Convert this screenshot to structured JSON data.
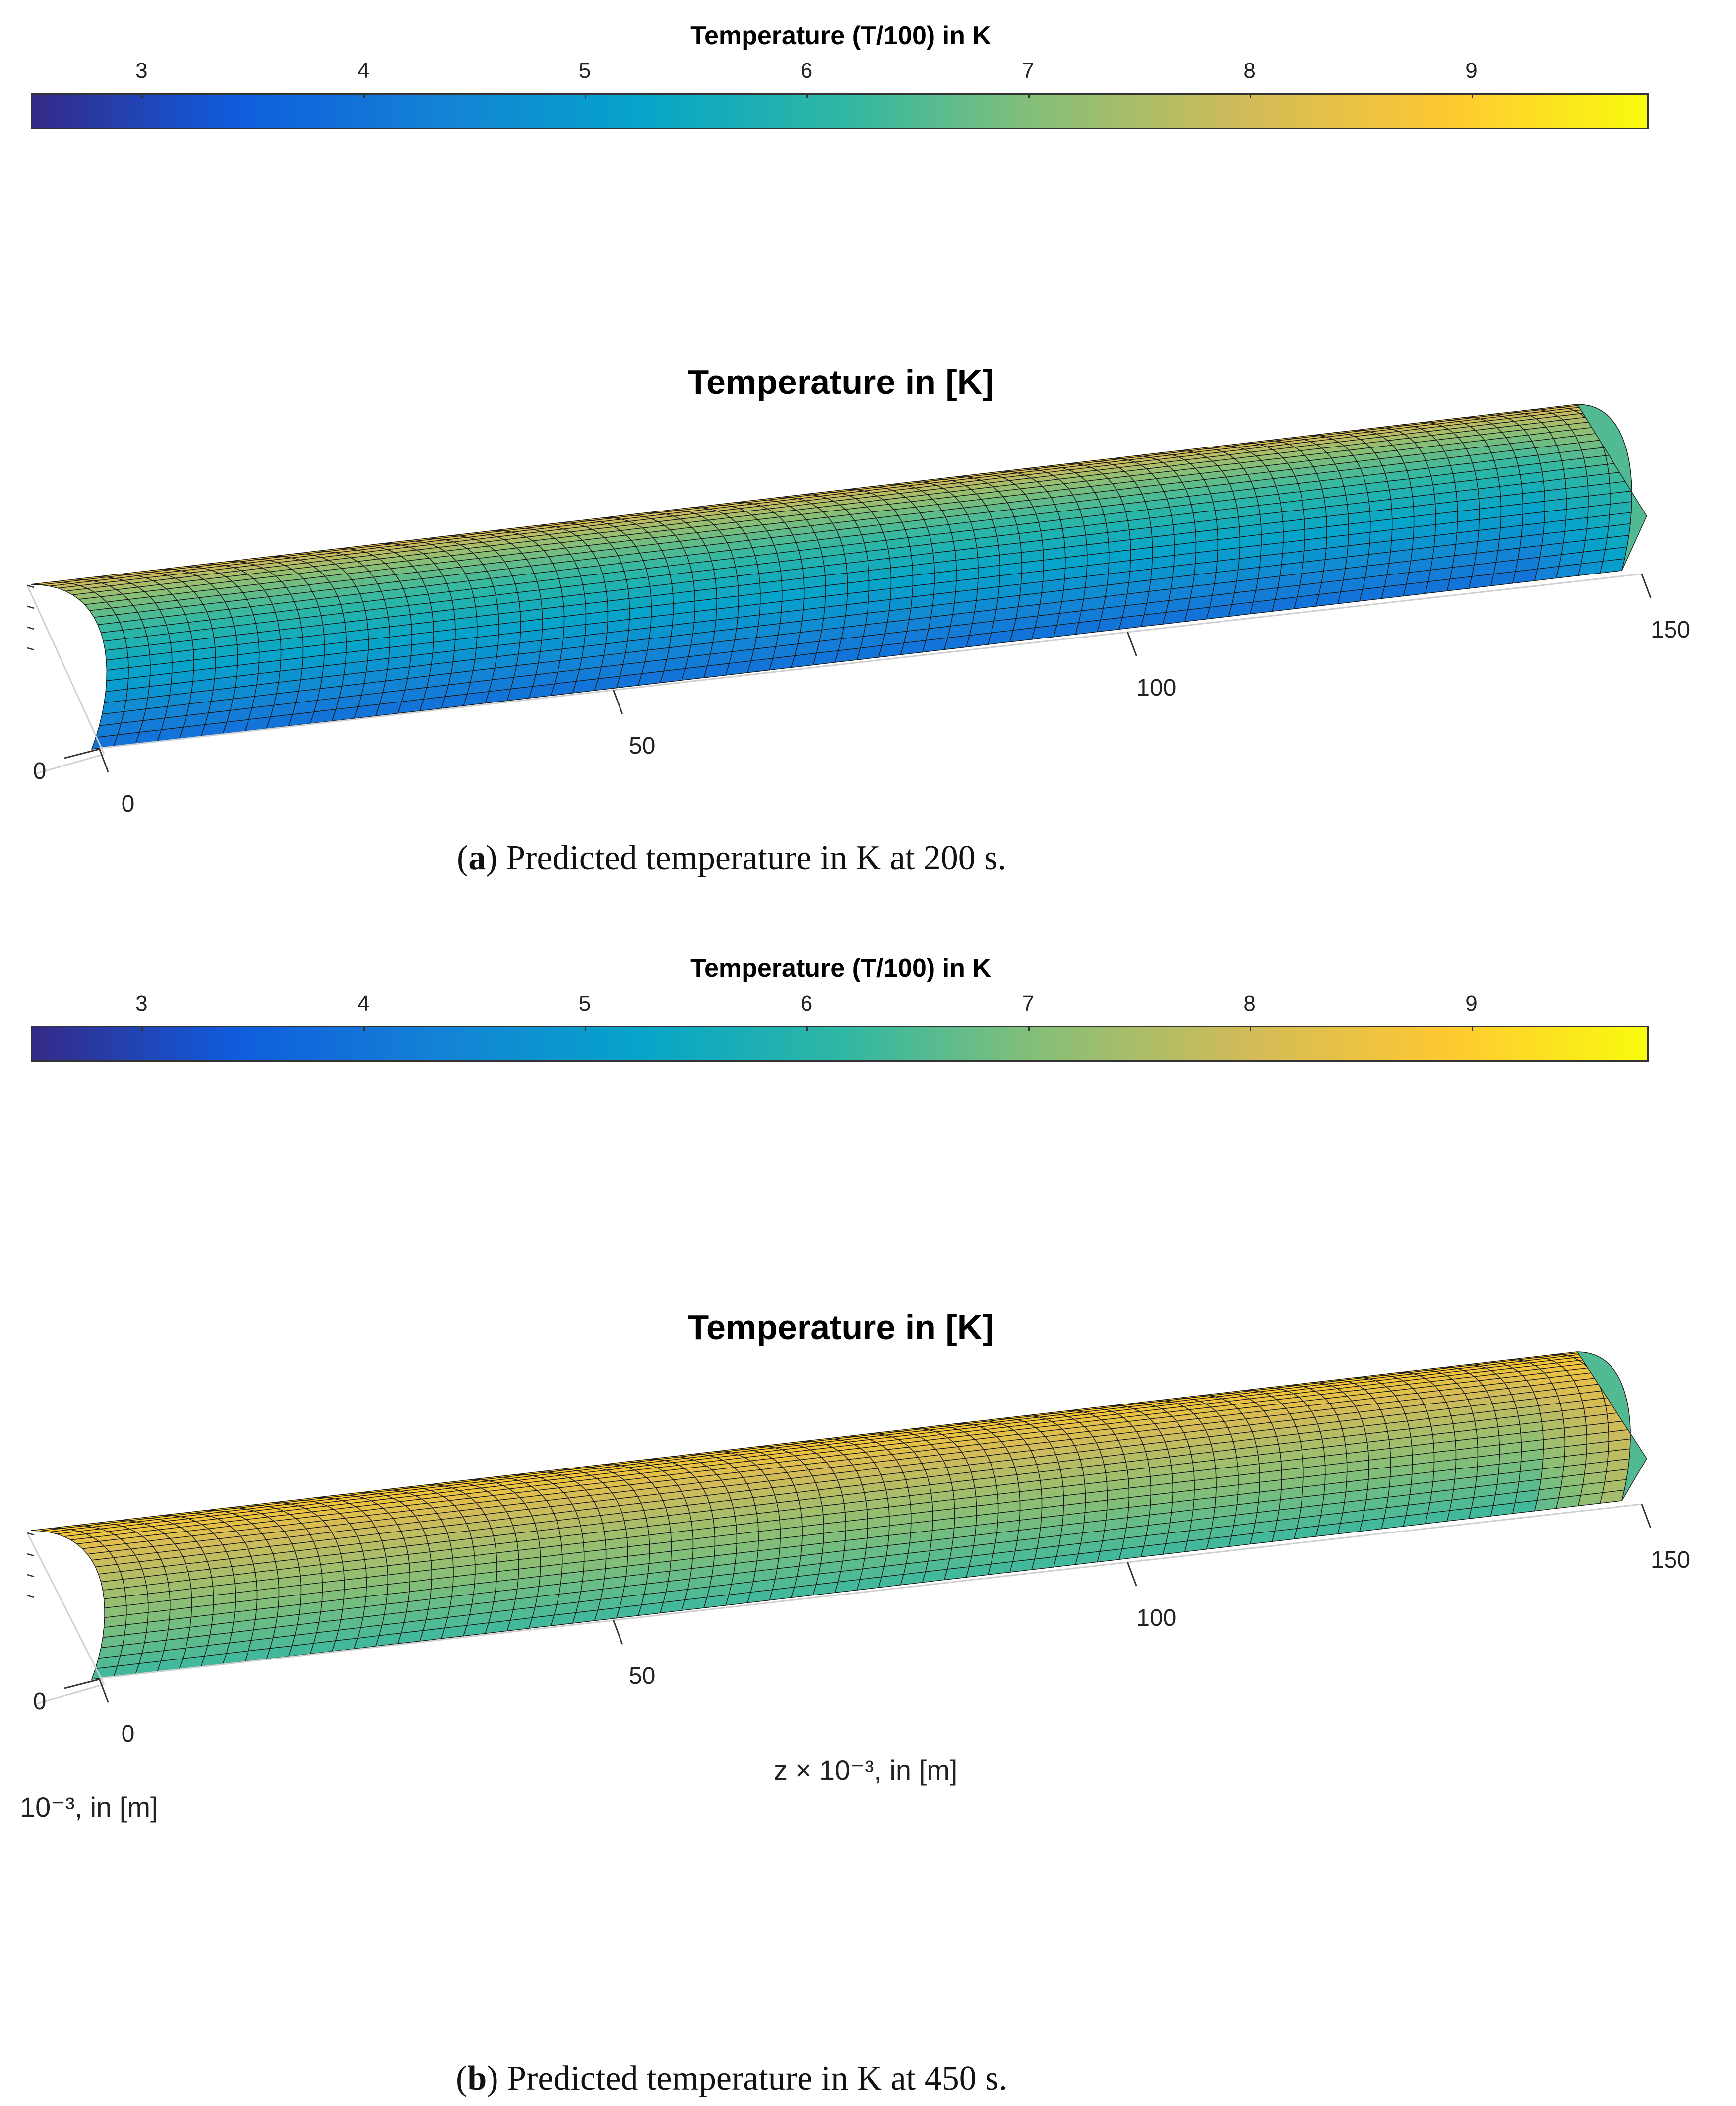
{
  "chart_data": [
    {
      "type": "surface",
      "panel": "a",
      "title": "Temperature in [K]",
      "colorbar": {
        "title": "Temperature (T/100) in K",
        "ticks": [
          "3",
          "4",
          "5",
          "6",
          "7",
          "8",
          "9"
        ],
        "range": [
          2.5,
          9.8
        ],
        "colormap": [
          "#352a87",
          "#0f5cdd",
          "#1481d6",
          "#06a4ca",
          "#2eb7a4",
          "#87bf77",
          "#d1bb59",
          "#fec832",
          "#f9fb0e"
        ]
      },
      "x_axis": {
        "label": "",
        "ticks": [
          "0",
          "50",
          "100",
          "150"
        ],
        "range": [
          0,
          150
        ]
      },
      "y_axis": {
        "label": "",
        "ticks": [
          "0"
        ]
      },
      "surface": {
        "temp_low": 3.1,
        "temp_high": 8.4
      },
      "caption": {
        "letter": "a",
        "text": ") Predicted temperature in K at 200 s.",
        "open": "("
      }
    },
    {
      "type": "surface",
      "panel": "b",
      "title": "Temperature in [K]",
      "colorbar": {
        "title": "Temperature (T/100) in K",
        "ticks": [
          "3",
          "4",
          "5",
          "6",
          "7",
          "8",
          "9"
        ],
        "range": [
          2.5,
          9.8
        ],
        "colormap": [
          "#352a87",
          "#0f5cdd",
          "#1481d6",
          "#06a4ca",
          "#2eb7a4",
          "#87bf77",
          "#d1bb59",
          "#fec832",
          "#f9fb0e"
        ]
      },
      "x_axis": {
        "label": "z × 10⁻³, in [m]",
        "ticks": [
          "0",
          "50",
          "100",
          "150"
        ],
        "range": [
          0,
          150
        ]
      },
      "y_axis": {
        "label": "10⁻³, in [m]",
        "ticks": [
          "0"
        ]
      },
      "surface": {
        "temp_low": 5.8,
        "temp_high": 9.1
      },
      "caption": {
        "letter": "b",
        "text": ") Predicted temperature in K at 450 s.",
        "open": "("
      }
    }
  ]
}
